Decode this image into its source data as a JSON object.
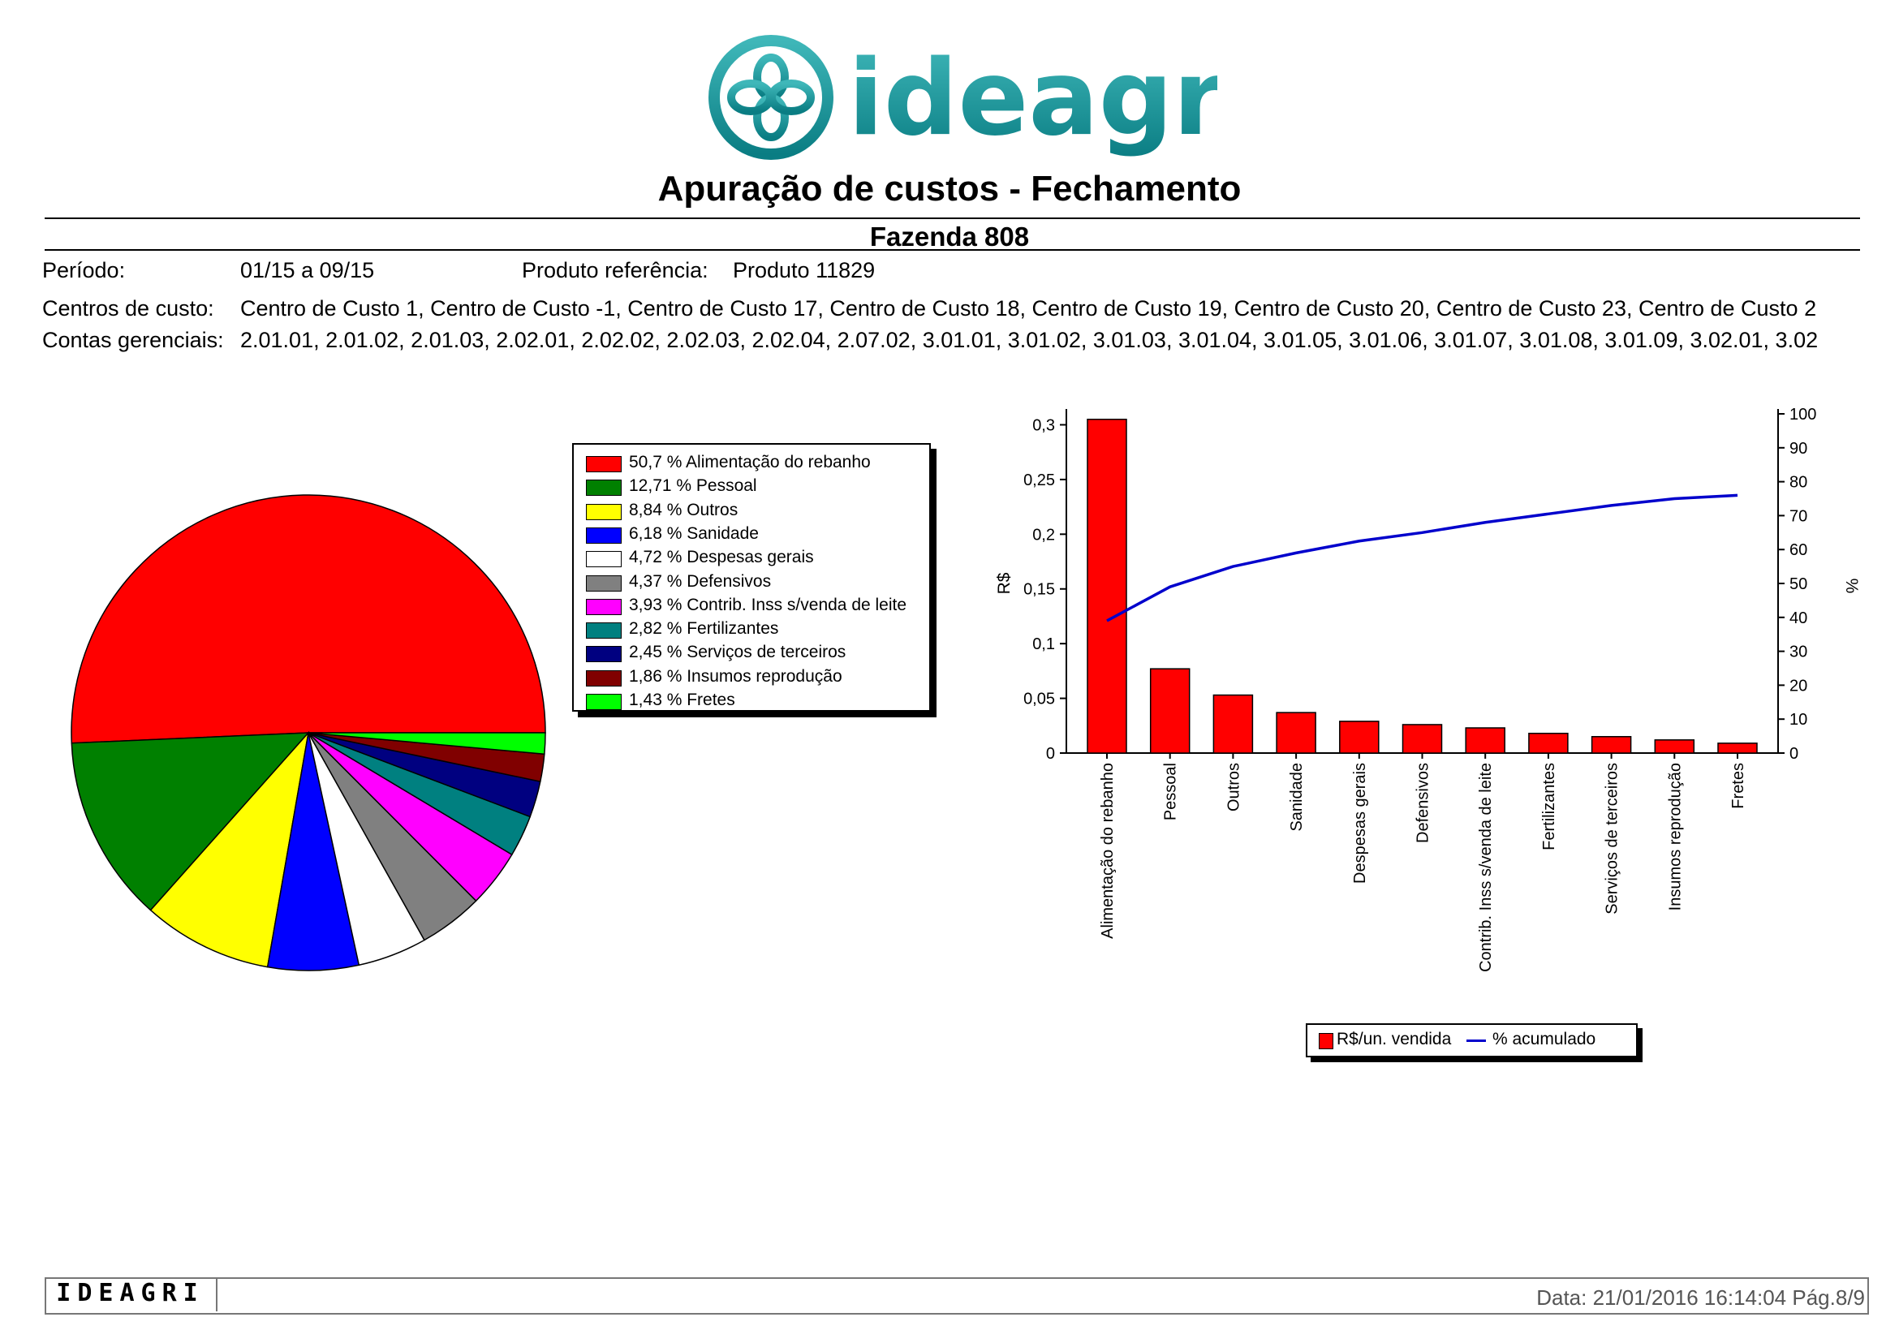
{
  "header": {
    "logo_text": "ideagri",
    "report_title": "Apuração de custos - Fechamento",
    "farm_name": "Fazenda 808"
  },
  "meta": {
    "periodo_label": "Período:",
    "periodo_value": "01/15 a 09/15",
    "produto_label": "Produto referência:",
    "produto_value": "Produto 11829",
    "centros_label": "Centros de custo:",
    "centros_value": "Centro de Custo 1, Centro de Custo -1, Centro de Custo 17, Centro de Custo 18, Centro de Custo 19, Centro de Custo 20, Centro de Custo 23, Centro de Custo 2",
    "contas_label": "Contas gerenciais:",
    "contas_value": "2.01.01, 2.01.02, 2.01.03, 2.02.01, 2.02.02, 2.02.03, 2.02.04, 2.07.02, 3.01.01, 3.01.02, 3.01.03, 3.01.04, 3.01.05, 3.01.06, 3.01.07, 3.01.08, 3.01.09, 3.02.01, 3.02"
  },
  "chart_data": [
    {
      "type": "pie",
      "slices": [
        {
          "label": "50,7 % Alimentação do rebanho",
          "value": 50.7,
          "color": "#ff0000"
        },
        {
          "label": "12,71 % Pessoal",
          "value": 12.71,
          "color": "#008000"
        },
        {
          "label": "8,84 % Outros",
          "value": 8.84,
          "color": "#ffff00"
        },
        {
          "label": "6,18 % Sanidade",
          "value": 6.18,
          "color": "#0000ff"
        },
        {
          "label": "4,72 % Despesas gerais",
          "value": 4.72,
          "color": "#ffffff"
        },
        {
          "label": "4,37 % Defensivos",
          "value": 4.37,
          "color": "#808080"
        },
        {
          "label": "3,93 % Contrib. Inss s/venda de leite",
          "value": 3.93,
          "color": "#ff00ff"
        },
        {
          "label": "2,82 % Fertilizantes",
          "value": 2.82,
          "color": "#008080"
        },
        {
          "label": "2,45 % Serviços de terceiros",
          "value": 2.45,
          "color": "#000080"
        },
        {
          "label": "1,86 % Insumos reprodução",
          "value": 1.86,
          "color": "#800000"
        },
        {
          "label": "1,43 % Fretes",
          "value": 1.43,
          "color": "#00ff00"
        }
      ]
    },
    {
      "type": "bar",
      "categories": [
        "Alimentação do rebanho",
        "Pessoal",
        "Outros",
        "Sanidade",
        "Despesas gerais",
        "Defensivos",
        "Contrib. Inss s/venda de leite",
        "Fertilizantes",
        "Serviços de terceiros",
        "Insumos reprodução",
        "Fretes"
      ],
      "series": [
        {
          "name": "R$/un. vendida",
          "axis": "left",
          "color": "#ff0000",
          "values": [
            0.305,
            0.077,
            0.053,
            0.037,
            0.029,
            0.026,
            0.023,
            0.018,
            0.015,
            0.012,
            0.009
          ]
        },
        {
          "name": "% acumulado",
          "axis": "right",
          "type": "line",
          "color": "#0000cc",
          "values": [
            39,
            49,
            55,
            59,
            62.5,
            65,
            68,
            70.5,
            73,
            75,
            76
          ]
        }
      ],
      "ylabel": "R$",
      "ylabel_right": "%",
      "ylim": [
        0,
        0.31
      ],
      "ylim_right": [
        0,
        100
      ],
      "yticks": [
        "0",
        "0,05",
        "0,1",
        "0,15",
        "0,2",
        "0,25",
        "0,3"
      ],
      "yticks_right": [
        "0",
        "10",
        "20",
        "30",
        "40",
        "50",
        "60",
        "70",
        "80",
        "90",
        "100"
      ],
      "legend": [
        "R$/un. vendida",
        "% acumulado"
      ]
    }
  ],
  "footer": {
    "brand": "IDEAGRI",
    "date_text": "Data: 21/01/2016 16:14:04 Pág.8/9"
  }
}
